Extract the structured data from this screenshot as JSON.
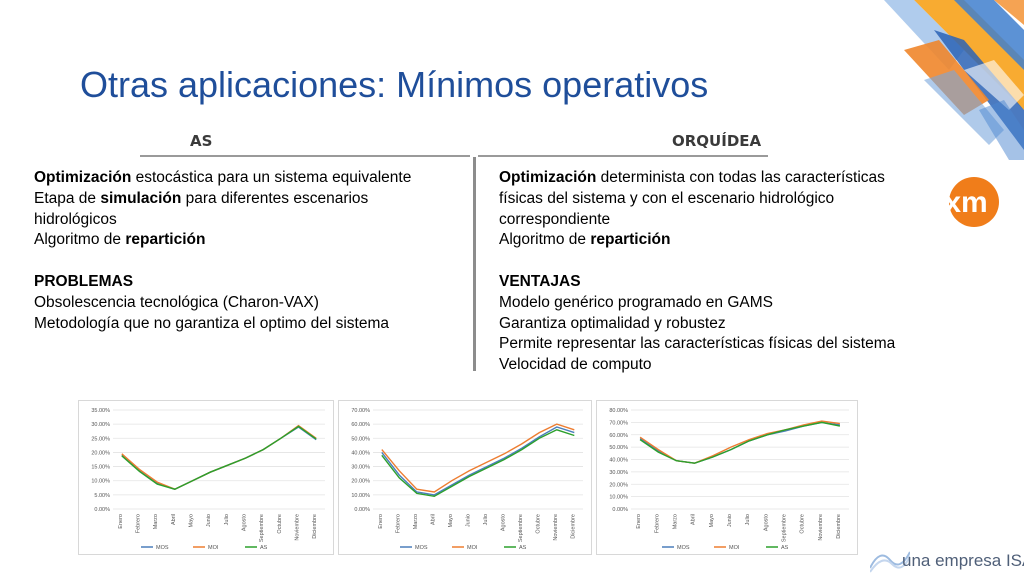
{
  "slide": {
    "title": "Otras aplicaciones: Mínimos operativos",
    "footer": "una empresa ISA",
    "logo_text": "xm"
  },
  "columns": {
    "left": {
      "header": "AS",
      "lines": [
        {
          "bold": "Optimización",
          "rest": " estocástica para un sistema equivalente"
        },
        {
          "pre": "Etapa de ",
          "bold": "simulación",
          "rest": " para diferentes escenarios"
        },
        {
          "text": "hidrológicos"
        },
        {
          "pre": "Algoritmo de ",
          "bold": "repartición"
        }
      ],
      "section_title": "PROBLEMAS",
      "section_items": [
        "Obsolescencia tecnológica (Charon-VAX)",
        "Metodología que no garantiza el optimo del sistema"
      ]
    },
    "right": {
      "header": "ORQUÍDEA",
      "lines": [
        {
          "bold": "Optimización",
          "rest": " determinista con todas las características"
        },
        {
          "text": "físicas del sistema y con el escenario hidrológico"
        },
        {
          "text": "correspondiente"
        },
        {
          "pre": "Algoritmo de ",
          "bold": "repartición"
        }
      ],
      "section_title": "VENTAJAS",
      "section_items": [
        "Modelo genérico programado en GAMS",
        "Garantiza optimalidad y robustez",
        "Permite representar las características físicas del sistema",
        "Velocidad de computo"
      ]
    }
  },
  "colors": {
    "title": "#1f4e9a",
    "mos": "#4a7ebb",
    "moi": "#ed7d31",
    "as": "#2ca02c",
    "logo_orange": "#f07d1a"
  },
  "chart_data": [
    {
      "type": "line",
      "categories": [
        "Enero",
        "Febrero",
        "Marzo",
        "Abril",
        "Mayo",
        "Junio",
        "Julio",
        "Agosto",
        "Septiembre",
        "Octubre",
        "Noviembre",
        "Diciembre"
      ],
      "yticks": [
        "0.00%",
        "5.00%",
        "10.00%",
        "15.00%",
        "20.00%",
        "25.00%",
        "30.00%",
        "35.00%"
      ],
      "ylim": [
        0,
        35
      ],
      "series": [
        {
          "name": "MOS",
          "color": "#4a7ebb",
          "values": [
            19,
            13.5,
            9,
            7,
            10,
            13,
            15.5,
            18,
            21,
            25,
            29,
            24.5
          ]
        },
        {
          "name": "MOI",
          "color": "#ed7d31",
          "values": [
            19.5,
            14,
            9.5,
            7,
            10,
            13,
            15.5,
            18,
            21,
            25,
            29.5,
            25
          ]
        },
        {
          "name": "AS",
          "color": "#2ca02c",
          "values": [
            18.8,
            13.3,
            8.8,
            7,
            10,
            13,
            15.5,
            18,
            21,
            25,
            29.2,
            24.7
          ]
        }
      ]
    },
    {
      "type": "line",
      "categories": [
        "Enero",
        "Febrero",
        "Marzo",
        "Abril",
        "Mayo",
        "Junio",
        "Julio",
        "Agosto",
        "Septiembre",
        "Octubre",
        "Noviembre",
        "Diciembre"
      ],
      "yticks": [
        "0.00%",
        "10.00%",
        "20.00%",
        "30.00%",
        "40.00%",
        "50.00%",
        "60.00%",
        "70.00%"
      ],
      "ylim": [
        0,
        70
      ],
      "series": [
        {
          "name": "MOS",
          "color": "#4a7ebb",
          "values": [
            40,
            24,
            12,
            10,
            17,
            24,
            30,
            36,
            43,
            51,
            58,
            54
          ]
        },
        {
          "name": "MOI",
          "color": "#ed7d31",
          "values": [
            42,
            27,
            14,
            12,
            20,
            27,
            33,
            39,
            46,
            54,
            60,
            56
          ]
        },
        {
          "name": "AS",
          "color": "#2ca02c",
          "values": [
            38,
            22,
            11,
            9,
            16,
            23,
            29,
            35,
            42,
            50,
            56,
            52
          ]
        }
      ]
    },
    {
      "type": "line",
      "categories": [
        "Enero",
        "Febrero",
        "Marzo",
        "Abril",
        "Mayo",
        "Junio",
        "Julio",
        "Agosto",
        "Septiembre",
        "Octubre",
        "Noviembre",
        "Diciembre"
      ],
      "yticks": [
        "0.00%",
        "10.00%",
        "20.00%",
        "30.00%",
        "40.00%",
        "50.00%",
        "60.00%",
        "70.00%",
        "80.00%"
      ],
      "ylim": [
        0,
        80
      ],
      "series": [
        {
          "name": "MOS",
          "color": "#4a7ebb",
          "values": [
            57,
            47,
            39,
            37,
            42,
            48,
            55,
            60,
            63,
            67,
            70,
            68
          ]
        },
        {
          "name": "MOI",
          "color": "#ed7d31",
          "values": [
            58,
            48,
            39,
            37,
            43,
            50,
            56,
            61,
            64,
            68,
            71,
            69
          ]
        },
        {
          "name": "AS",
          "color": "#2ca02c",
          "values": [
            56,
            46,
            39,
            37,
            42,
            48,
            55,
            60,
            64,
            67,
            70,
            67
          ]
        }
      ]
    }
  ]
}
